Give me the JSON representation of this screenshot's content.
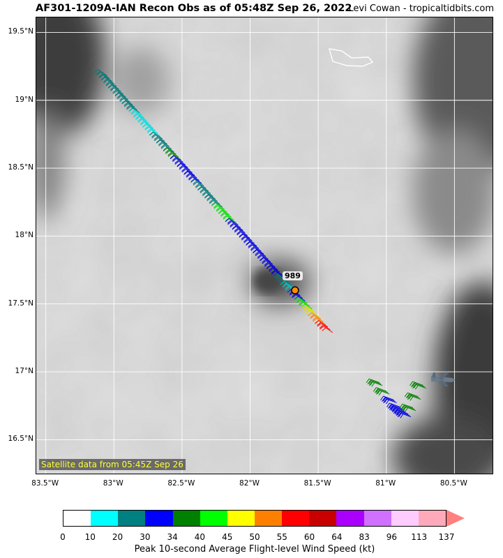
{
  "header": {
    "title": "AF301-1209A-IAN Recon Obs as of 05:48Z Sep 26, 2022",
    "credit": "Levi Cowan - tropicaltidbits.com"
  },
  "map": {
    "lat_labels": [
      "19.5°N",
      "19°N",
      "18.5°N",
      "18°N",
      "17.5°N",
      "17°N",
      "16.5°N"
    ],
    "lon_labels": [
      "83.5°W",
      "83°W",
      "82.5°W",
      "82°W",
      "81.5°W",
      "81°W",
      "80.5°W"
    ],
    "satellite_note": "Satellite data from 05:45Z Sep 26",
    "center_pressure": "989",
    "aircraft_icon": "recon-aircraft-icon"
  },
  "colorbar": {
    "colors": [
      "#ffffff",
      "#00ffff",
      "#008080",
      "#0000ff",
      "#008000",
      "#00ff00",
      "#ffff00",
      "#ff8000",
      "#ff0000",
      "#c80000",
      "#aa00ff",
      "#d070ff",
      "#ffccff",
      "#ffaabb"
    ],
    "arrow_color": "#ff8080",
    "ticks": [
      "0",
      "10",
      "20",
      "30",
      "34",
      "40",
      "45",
      "50",
      "55",
      "60",
      "64",
      "83",
      "96",
      "113",
      "137"
    ],
    "label": "Peak 10-second Average Flight-level Wind Speed (kt)"
  },
  "flight_obs": {
    "leg1": {
      "start": [
        -83.07,
        19.18
      ],
      "end": [
        -81.45,
        17.33
      ],
      "colors": [
        "#007878",
        "#007878",
        "#007878",
        "#007878",
        "#007878",
        "#00e0e0",
        "#00e0e0",
        "#00e0e0",
        "#007878",
        "#007878",
        "#008000",
        "#0000e0",
        "#0000e0",
        "#0000e0",
        "#007878",
        "#007878",
        "#007878",
        "#00e000",
        "#00e000",
        "#0000e0",
        "#0000e0",
        "#0000e0",
        "#0000e0",
        "#0000e0",
        "#0000e0",
        "#0000e0",
        "#007878",
        "#00c8c8",
        "#0000e0",
        "#00e000",
        "#e0e000",
        "#ff8000",
        "#ff0000"
      ]
    },
    "leg2": {
      "points": [
        [
          -81.07,
          16.92
        ],
        [
          -80.93,
          16.75
        ],
        [
          -80.85,
          16.68
        ],
        [
          -80.75,
          16.9
        ]
      ],
      "colors": [
        "#008000",
        "#008000",
        "#0000e0",
        "#0000e0",
        "#0000e0",
        "#0000e0",
        "#008000",
        "#008000",
        "#008000"
      ]
    }
  }
}
